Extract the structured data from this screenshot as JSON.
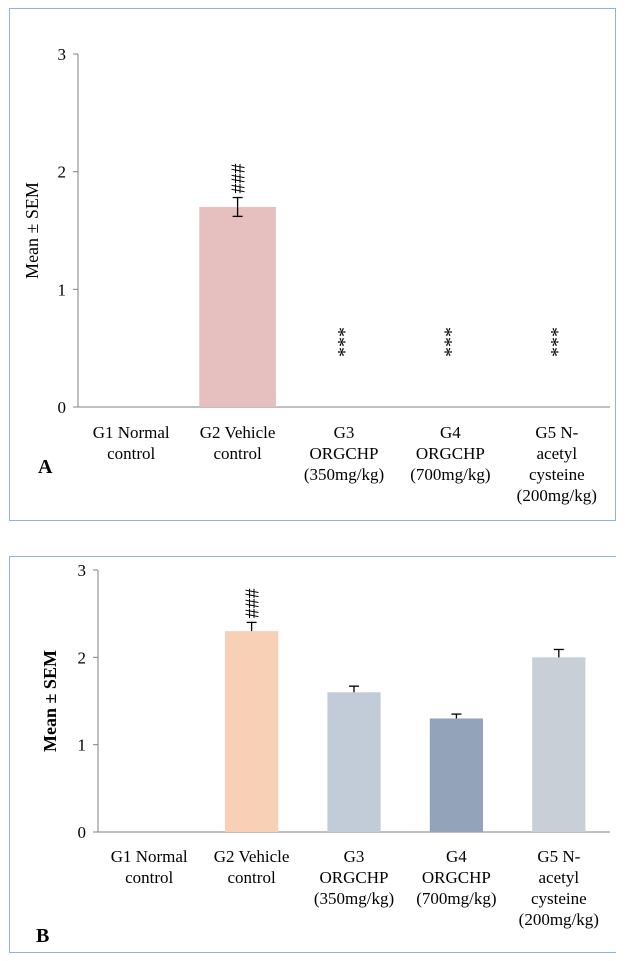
{
  "chart_data": [
    {
      "panel_label": "A",
      "type": "bar",
      "ylabel": "Mean ± SEM",
      "ylim": [
        0,
        3
      ],
      "yticks": [
        "0",
        "1",
        "2",
        "3"
      ],
      "categories": [
        [
          "G1 Normal",
          "control"
        ],
        [
          "G2 Vehicle",
          "control"
        ],
        [
          "G3",
          "ORGCHP",
          "(350mg/kg)"
        ],
        [
          "G4",
          "ORGCHP",
          "(700mg/kg)"
        ],
        [
          "G5 N-",
          "acetyl",
          "cysteine",
          "(200mg/kg)"
        ]
      ],
      "values": [
        0,
        1.7,
        0,
        0,
        0
      ],
      "errors": [
        0,
        0.08,
        0,
        0,
        0
      ],
      "annotations": [
        "",
        "###",
        "***",
        "***",
        "***"
      ],
      "colors": [
        "#e6bfbf",
        "#e6bfbf",
        "#e6bfbf",
        "#e6bfbf",
        "#e6bfbf"
      ],
      "grid": false
    },
    {
      "panel_label": "B",
      "type": "bar",
      "ylabel": "Mean ± SEM",
      "ylim": [
        0,
        3
      ],
      "yticks": [
        "0",
        "1",
        "2",
        "3"
      ],
      "categories": [
        [
          "G1 Normal",
          "control"
        ],
        [
          "G2 Vehicle",
          "control"
        ],
        [
          "G3",
          "ORGCHP",
          "(350mg/kg)"
        ],
        [
          "G4",
          "ORGCHP",
          "(700mg/kg)"
        ],
        [
          "G5 N-",
          "acetyl",
          "cysteine",
          "(200mg/kg)"
        ]
      ],
      "values": [
        0,
        2.3,
        1.6,
        1.3,
        2.0
      ],
      "errors": [
        0,
        0.1,
        0.07,
        0.05,
        0.09
      ],
      "annotations": [
        "",
        "###",
        "",
        "",
        ""
      ],
      "colors": [
        "#c7d1dc",
        "#f8d0b6",
        "#c2ccd8",
        "#93a4ba",
        "#c9cfd6"
      ],
      "grid": false
    }
  ]
}
